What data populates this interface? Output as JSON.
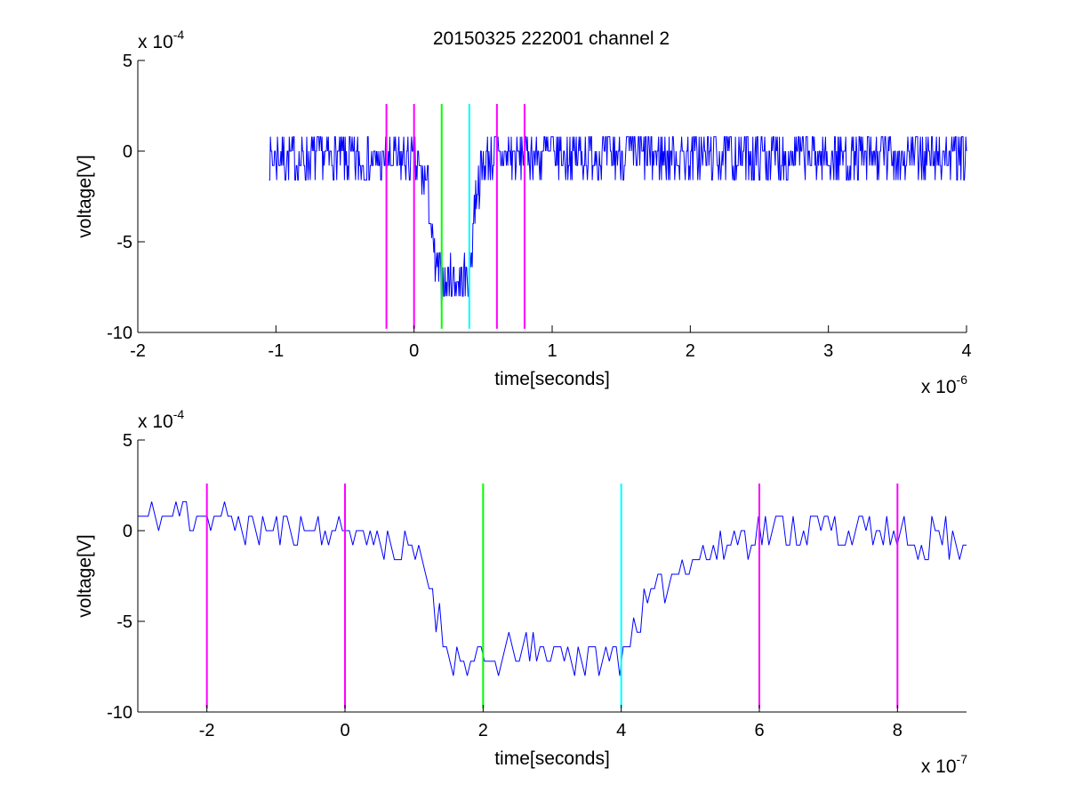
{
  "figure_title": "20150325 222001 channel 2",
  "chart_data": [
    {
      "type": "line",
      "title": "20150325 222001 channel 2",
      "xlabel": "time[seconds]",
      "ylabel": "voltage[V]",
      "x_multiplier": "x 10",
      "x_multiplier_exp": "-6",
      "y_multiplier": "x 10",
      "y_multiplier_exp": "-4",
      "x_scale": 1e-06,
      "y_scale": 0.0001,
      "xlim": [
        -2,
        4
      ],
      "ylim": [
        -10,
        5
      ],
      "xticks": [
        -2,
        -1,
        0,
        1,
        2,
        3,
        4
      ],
      "xtick_labels": [
        "-2",
        "-1",
        "0",
        "1",
        "2",
        "3",
        "4"
      ],
      "yticks": [
        -10,
        -5,
        0,
        5
      ],
      "ytick_labels": [
        "-10",
        "-5",
        "0",
        "5"
      ],
      "grid": false,
      "series": [
        {
          "color": "#0000ff",
          "kind": "noisy-trace",
          "x_start": -1.05,
          "x_end": 4.0,
          "samples": 1000,
          "noise_amplitude": 1.4,
          "seed": 7,
          "levels": [
            [
              -1.05,
              -0.3
            ],
            [
              0.0,
              -0.6
            ],
            [
              0.1,
              -2.0
            ],
            [
              0.15,
              -6.5
            ],
            [
              0.2,
              -7.2
            ],
            [
              0.4,
              -7.0
            ],
            [
              0.45,
              -2.0
            ],
            [
              0.52,
              -0.6
            ],
            [
              0.6,
              -0.2
            ],
            [
              4.0,
              -0.3
            ]
          ]
        }
      ],
      "markers": [
        {
          "x": -0.2,
          "color": "#ff00ff"
        },
        {
          "x": 0.0,
          "color": "#ff00ff"
        },
        {
          "x": 0.2,
          "color": "#00ff00"
        },
        {
          "x": 0.4,
          "color": "#00ffff"
        },
        {
          "x": 0.6,
          "color": "#ff00ff"
        },
        {
          "x": 0.8,
          "color": "#ff00ff"
        }
      ],
      "marker_range": [
        -9.8,
        2.6
      ]
    },
    {
      "type": "line",
      "title": "",
      "xlabel": "time[seconds]",
      "ylabel": "voltage[V]",
      "x_multiplier": "x 10",
      "x_multiplier_exp": "-7",
      "y_multiplier": "x 10",
      "y_multiplier_exp": "-4",
      "x_scale": 1e-07,
      "y_scale": 0.0001,
      "xlim": [
        -3,
        9
      ],
      "ylim": [
        -10,
        5
      ],
      "xticks": [
        -2,
        0,
        2,
        4,
        6,
        8
      ],
      "xtick_labels": [
        "-2",
        "0",
        "2",
        "4",
        "6",
        "8"
      ],
      "yticks": [
        -10,
        -5,
        0,
        5
      ],
      "ytick_labels": [
        "-10",
        "-5",
        "0",
        "5"
      ],
      "grid": false,
      "series": [
        {
          "color": "#0000ff",
          "kind": "noisy-trace",
          "x_start": -3.0,
          "x_end": 9.0,
          "samples": 240,
          "noise_amplitude": 1.0,
          "seed": 11,
          "levels": [
            [
              -3.0,
              0.6
            ],
            [
              -2.0,
              1.0
            ],
            [
              -1.5,
              0.2
            ],
            [
              0.0,
              0.0
            ],
            [
              0.5,
              -0.4
            ],
            [
              1.0,
              -1.5
            ],
            [
              1.2,
              -2.5
            ],
            [
              1.4,
              -5.5
            ],
            [
              1.6,
              -7.2
            ],
            [
              2.0,
              -7.5
            ],
            [
              2.5,
              -6.8
            ],
            [
              3.0,
              -6.5
            ],
            [
              3.5,
              -7.0
            ],
            [
              4.0,
              -7.0
            ],
            [
              4.2,
              -5.0
            ],
            [
              4.6,
              -3.0
            ],
            [
              5.0,
              -1.5
            ],
            [
              5.5,
              -0.8
            ],
            [
              6.0,
              0.0
            ],
            [
              7.0,
              0.2
            ],
            [
              8.0,
              -0.5
            ],
            [
              9.0,
              -0.4
            ]
          ]
        }
      ],
      "markers": [
        {
          "x": -2,
          "color": "#ff00ff"
        },
        {
          "x": 0,
          "color": "#ff00ff"
        },
        {
          "x": 2,
          "color": "#00ff00"
        },
        {
          "x": 4,
          "color": "#00ffff"
        },
        {
          "x": 6,
          "color": "#ff00ff"
        },
        {
          "x": 8,
          "color": "#ff00ff"
        }
      ],
      "marker_range": [
        -9.8,
        2.6
      ]
    }
  ]
}
